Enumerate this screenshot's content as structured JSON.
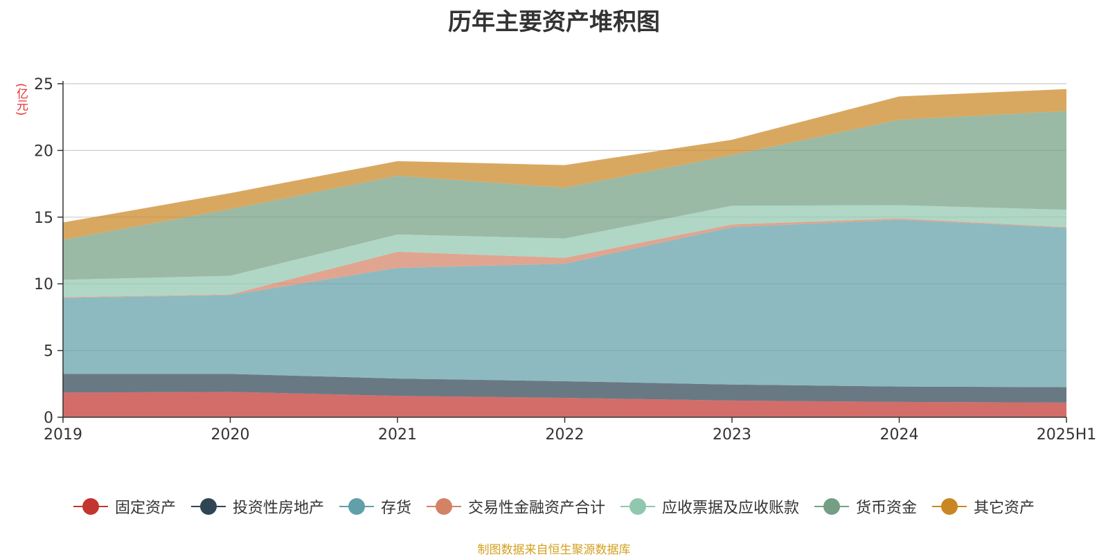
{
  "chart_data": {
    "type": "area",
    "title": "历年主要资产堆积图",
    "unit_label": "(亿元)",
    "source_note": "制图数据来自恒生聚源数据库",
    "categories": [
      "2019",
      "2020",
      "2021",
      "2022",
      "2023",
      "2024",
      "2025H1"
    ],
    "ylim": [
      0,
      25
    ],
    "yticks": [
      0,
      5,
      10,
      15,
      20,
      25
    ],
    "stacked": true,
    "grid": true,
    "legend_position": "bottom",
    "series": [
      {
        "name": "固定资产",
        "color": "#c23531",
        "values": [
          1.85,
          1.9,
          1.6,
          1.45,
          1.25,
          1.15,
          1.1
        ]
      },
      {
        "name": "投资性房地产",
        "color": "#2f4554",
        "values": [
          1.4,
          1.35,
          1.3,
          1.25,
          1.2,
          1.15,
          1.15
        ]
      },
      {
        "name": "存货",
        "color": "#61a0a8",
        "values": [
          5.7,
          5.9,
          8.3,
          8.8,
          11.8,
          12.5,
          11.95
        ]
      },
      {
        "name": "交易性金融资产合计",
        "color": "#d48265",
        "values": [
          0.05,
          0.05,
          1.2,
          0.45,
          0.2,
          0.1,
          0.05
        ]
      },
      {
        "name": "应收票据及应收账款",
        "color": "#91c7ae",
        "values": [
          1.3,
          1.4,
          1.3,
          1.45,
          1.4,
          1.0,
          1.3
        ]
      },
      {
        "name": "货币资金",
        "color": "#749f83",
        "values": [
          3.0,
          5.0,
          4.4,
          3.8,
          3.8,
          6.4,
          7.4
        ]
      },
      {
        "name": "其它资产",
        "color": "#ca8622",
        "values": [
          1.3,
          1.2,
          1.1,
          1.7,
          1.15,
          1.75,
          1.65
        ]
      }
    ]
  }
}
